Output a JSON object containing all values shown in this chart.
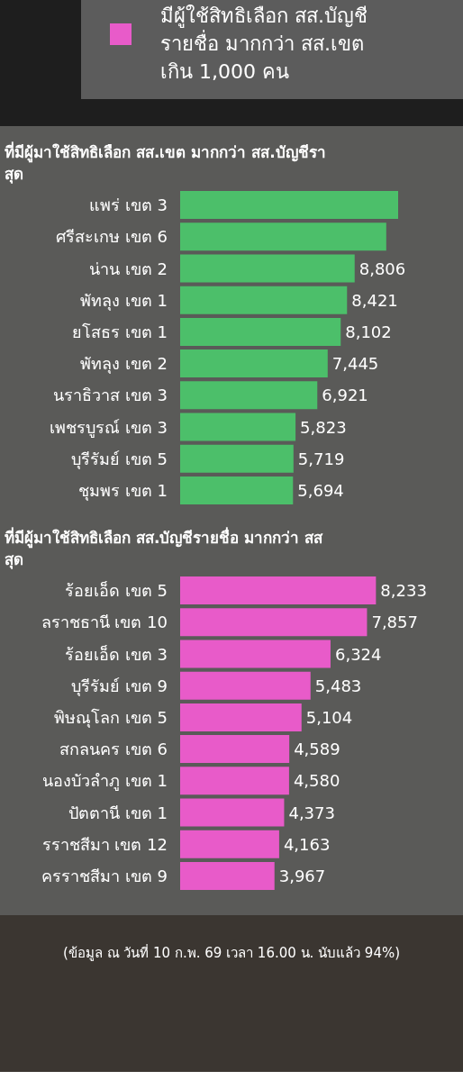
{
  "chart_data": [
    {
      "type": "other",
      "annotations": [
        "มีผู้ใช้สิทธิเลือก สส.บัญชี\nรายชื่อ มากกว่า สส.เขต\nเกิน 1,000 คน"
      ]
    },
    {
      "type": "bar",
      "orientation": "horizontal",
      "title": "ที่มีผู้มาใช้สิทธิเลือก สส.เขต มากกว่า สส.บัญชีรา\nสุด",
      "categories": [
        "แพร่ เขต 3",
        "ศรีสะเกษ เขต 6",
        "น่าน เขต 2",
        "พัทลุง เขต 1",
        "ยโสธร เขต 1",
        "พัทลุง เขต 2",
        "นราธิวาส เขต 3",
        "เพชรบูรณ์ เขต 3",
        "บุรีรัมย์ เขต 5",
        "ชุมพร เขต 1"
      ],
      "values": [
        11000,
        10400,
        8806,
        8421,
        8102,
        7445,
        6921,
        5823,
        5719,
        5694
      ],
      "value_labels": [
        null,
        null,
        "8,806",
        "8,421",
        "8,102",
        "7,445",
        "6,921",
        "5,823",
        "5,719",
        "5,694"
      ],
      "color": "#4cbf6a"
    },
    {
      "type": "bar",
      "orientation": "horizontal",
      "title": "ที่มีผู้มาใช้สิทธิเลือก สส.บัญชีรายชื่อ มากกว่า สส\nสุด",
      "categories": [
        "ร้อยเอ็ด เขต 5",
        "ลราชธานี เขต 10",
        "ร้อยเอ็ด เขต 3",
        "บุรีรัมย์ เขต 9",
        "พิษณุโลก เขต 5",
        "สกลนคร เขต 6",
        "นองบัวลำภู เขต 1",
        "ปัตตานี เขต 1",
        "รราชสีมา เขต 12",
        "ครราชสีมา เขต 9"
      ],
      "values": [
        8233,
        7857,
        6324,
        5483,
        5104,
        4589,
        4580,
        4373,
        4163,
        3967
      ],
      "value_labels": [
        "8,233",
        "7,857",
        "6,324",
        "5,483",
        "5,104",
        "4,589",
        "4,580",
        "4,373",
        "4,163",
        "3,967"
      ],
      "color": "#e85bc9",
      "annotations": [
        "(ข้อมูล ณ วันที่ 10 ก.พ. 69 เวลา 16.00 น. นับแล้ว 94%)"
      ]
    }
  ]
}
